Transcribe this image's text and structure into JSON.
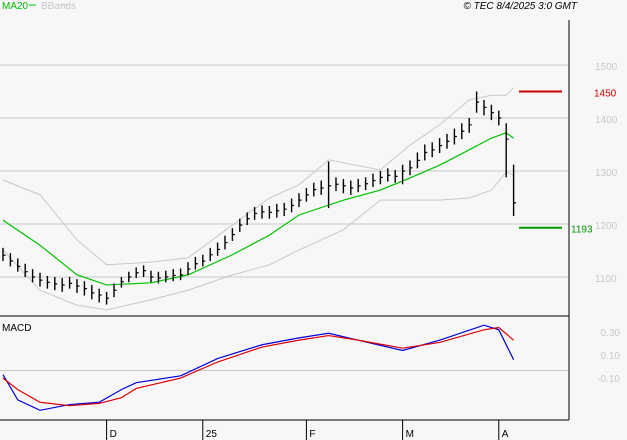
{
  "header": {
    "legend": [
      {
        "name": "MA20",
        "color": "#00c000"
      },
      {
        "name": "BBands",
        "color": "#c8c8c8"
      }
    ],
    "copyright": "© TEC 8/4/2025 3:0 GMT"
  },
  "chart_data": [
    {
      "type": "candlestick",
      "panel": "price",
      "ylim": [
        1020,
        1550
      ],
      "y_ticks": [
        1100,
        1200,
        1300,
        1400,
        1500
      ],
      "y_tick_labels": [
        "1100",
        "1200",
        "1300",
        "1400",
        "1500"
      ],
      "grid": true,
      "x_tick_labels": [
        {
          "label": "D",
          "bar": 14
        },
        {
          "label": "25",
          "bar": 27
        },
        {
          "label": "F",
          "bar": 41
        },
        {
          "label": "M",
          "bar": 54
        },
        {
          "label": "A",
          "bar": 67
        }
      ],
      "bars_hlc": [
        [
          1155,
          1130,
          1141
        ],
        [
          1145,
          1120,
          1130
        ],
        [
          1135,
          1110,
          1120
        ],
        [
          1125,
          1100,
          1110
        ],
        [
          1115,
          1090,
          1100
        ],
        [
          1108,
          1082,
          1094
        ],
        [
          1102,
          1078,
          1090
        ],
        [
          1100,
          1075,
          1087
        ],
        [
          1098,
          1072,
          1085
        ],
        [
          1100,
          1078,
          1088
        ],
        [
          1096,
          1070,
          1083
        ],
        [
          1092,
          1065,
          1078
        ],
        [
          1085,
          1058,
          1070
        ],
        [
          1078,
          1052,
          1066
        ],
        [
          1072,
          1048,
          1060
        ],
        [
          1088,
          1062,
          1075
        ],
        [
          1100,
          1080,
          1091
        ],
        [
          1110,
          1090,
          1100
        ],
        [
          1118,
          1098,
          1108
        ],
        [
          1122,
          1100,
          1112
        ],
        [
          1112,
          1090,
          1100
        ],
        [
          1110,
          1088,
          1098
        ],
        [
          1112,
          1090,
          1100
        ],
        [
          1115,
          1092,
          1103
        ],
        [
          1116,
          1094,
          1104
        ],
        [
          1128,
          1104,
          1115
        ],
        [
          1138,
          1114,
          1125
        ],
        [
          1142,
          1120,
          1130
        ],
        [
          1155,
          1130,
          1142
        ],
        [
          1165,
          1140,
          1152
        ],
        [
          1178,
          1152,
          1165
        ],
        [
          1192,
          1168,
          1180
        ],
        [
          1210,
          1185,
          1198
        ],
        [
          1222,
          1198,
          1210
        ],
        [
          1232,
          1208,
          1220
        ],
        [
          1235,
          1210,
          1223
        ],
        [
          1234,
          1210,
          1222
        ],
        [
          1238,
          1212,
          1225
        ],
        [
          1240,
          1215,
          1228
        ],
        [
          1248,
          1222,
          1235
        ],
        [
          1258,
          1232,
          1245
        ],
        [
          1268,
          1242,
          1255
        ],
        [
          1278,
          1252,
          1265
        ],
        [
          1282,
          1255,
          1268
        ],
        [
          1318,
          1230,
          1272
        ],
        [
          1288,
          1262,
          1275
        ],
        [
          1285,
          1258,
          1272
        ],
        [
          1282,
          1255,
          1268
        ],
        [
          1285,
          1260,
          1272
        ],
        [
          1288,
          1264,
          1276
        ],
        [
          1295,
          1270,
          1282
        ],
        [
          1300,
          1275,
          1288
        ],
        [
          1305,
          1280,
          1292
        ],
        [
          1302,
          1278,
          1290
        ],
        [
          1312,
          1275,
          1300
        ],
        [
          1320,
          1292,
          1306
        ],
        [
          1335,
          1305,
          1320
        ],
        [
          1350,
          1320,
          1335
        ],
        [
          1354,
          1326,
          1340
        ],
        [
          1362,
          1334,
          1348
        ],
        [
          1370,
          1342,
          1356
        ],
        [
          1380,
          1350,
          1365
        ],
        [
          1390,
          1360,
          1375
        ],
        [
          1400,
          1372,
          1387
        ],
        [
          1450,
          1410,
          1430
        ],
        [
          1434,
          1405,
          1420
        ],
        [
          1425,
          1396,
          1410
        ],
        [
          1414,
          1386,
          1400
        ],
        [
          1390,
          1288,
          1360
        ],
        [
          1312,
          1215,
          1240
        ]
      ],
      "series": [
        {
          "name": "MA20",
          "color": "#00c000",
          "points": [
            [
              0,
              1207
            ],
            [
              5,
              1160
            ],
            [
              10,
              1104
            ],
            [
              14,
              1085
            ],
            [
              20,
              1089
            ],
            [
              25,
              1104
            ],
            [
              31,
              1142
            ],
            [
              36,
              1179
            ],
            [
              40,
              1217
            ],
            [
              46,
              1245
            ],
            [
              51,
              1264
            ],
            [
              55,
              1287
            ],
            [
              59,
              1311
            ],
            [
              63,
              1340
            ],
            [
              66,
              1362
            ],
            [
              68,
              1372
            ],
            [
              69,
              1362
            ]
          ]
        },
        {
          "name": "BBands",
          "color": "#c8c8c8",
          "points": [
            [
              0,
              1283
            ],
            [
              5,
              1255
            ],
            [
              10,
              1170
            ],
            [
              14,
              1123
            ],
            [
              20,
              1128
            ],
            [
              25,
              1136
            ],
            [
              31,
              1198
            ],
            [
              36,
              1249
            ],
            [
              40,
              1274
            ],
            [
              44,
              1321
            ],
            [
              51,
              1302
            ],
            [
              55,
              1349
            ],
            [
              59,
              1387
            ],
            [
              63,
              1434
            ],
            [
              66,
              1443
            ],
            [
              68,
              1443
            ],
            [
              69,
              1457
            ]
          ]
        },
        {
          "name": "BBands-lower",
          "color": "#c8c8c8",
          "points": [
            [
              0,
              1151
            ],
            [
              5,
              1075
            ],
            [
              10,
              1047
            ],
            [
              14,
              1038
            ],
            [
              20,
              1057
            ],
            [
              25,
              1075
            ],
            [
              31,
              1104
            ],
            [
              36,
              1123
            ],
            [
              40,
              1151
            ],
            [
              46,
              1189
            ],
            [
              51,
              1245
            ],
            [
              55,
              1245
            ],
            [
              59,
              1245
            ],
            [
              63,
              1249
            ],
            [
              66,
              1264
            ],
            [
              68,
              1298
            ],
            [
              69,
              1292
            ]
          ]
        }
      ],
      "annotations": [
        {
          "label": "1450",
          "value": 1450,
          "color": "#cc0000"
        },
        {
          "label": "1193",
          "value": 1193,
          "color": "#009900"
        }
      ]
    },
    {
      "type": "line",
      "panel": "MACD",
      "title": "MACD",
      "ylim": [
        -0.4,
        0.65
      ],
      "y_ticks": [
        0.3,
        0.1,
        -0.1
      ],
      "y_tick_labels": [
        "0.30",
        "0.10",
        "-0.10"
      ],
      "zero_line": 0.0,
      "series": [
        {
          "color": "#0000dd",
          "points": [
            [
              0,
              -0.01
            ],
            [
              2,
              -0.23
            ],
            [
              5,
              -0.32
            ],
            [
              9,
              -0.27
            ],
            [
              13,
              -0.25
            ],
            [
              16,
              -0.14
            ],
            [
              18,
              -0.08
            ],
            [
              24,
              -0.02
            ],
            [
              29,
              0.13
            ],
            [
              35,
              0.25
            ],
            [
              40,
              0.31
            ],
            [
              44,
              0.35
            ],
            [
              48,
              0.29
            ],
            [
              54,
              0.2
            ],
            [
              59,
              0.29
            ],
            [
              65,
              0.42
            ],
            [
              67,
              0.38
            ],
            [
              69,
              0.12
            ]
          ]
        },
        {
          "color": "#dd0000",
          "points": [
            [
              0,
              -0.04
            ],
            [
              2,
              -0.14
            ],
            [
              5,
              -0.25
            ],
            [
              9,
              -0.28
            ],
            [
              13,
              -0.26
            ],
            [
              16,
              -0.21
            ],
            [
              18,
              -0.13
            ],
            [
              24,
              -0.04
            ],
            [
              29,
              0.1
            ],
            [
              35,
              0.23
            ],
            [
              40,
              0.29
            ],
            [
              44,
              0.33
            ],
            [
              48,
              0.29
            ],
            [
              54,
              0.22
            ],
            [
              59,
              0.27
            ],
            [
              65,
              0.38
            ],
            [
              67,
              0.4
            ],
            [
              69,
              0.29
            ]
          ]
        }
      ]
    }
  ]
}
